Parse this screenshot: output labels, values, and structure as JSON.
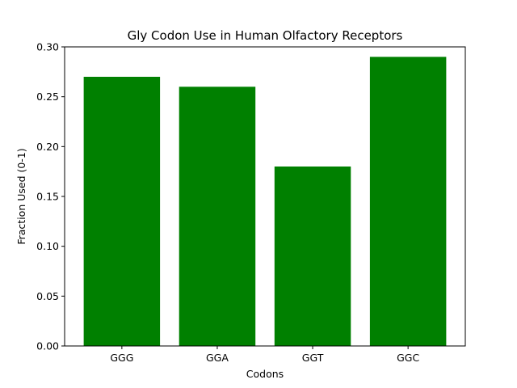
{
  "chart_data": {
    "type": "bar",
    "title": "Gly Codon Use in Human Olfactory Receptors",
    "xlabel": "Codons",
    "ylabel": "Fraction Used (0-1)",
    "categories": [
      "GGG",
      "GGA",
      "GGT",
      "GGC"
    ],
    "values": [
      0.27,
      0.26,
      0.18,
      0.29
    ],
    "ylim": [
      0,
      0.3
    ],
    "yticks": [
      0.0,
      0.05,
      0.1,
      0.15,
      0.2,
      0.25,
      0.3
    ],
    "ytick_labels": [
      "0.00",
      "0.05",
      "0.10",
      "0.15",
      "0.20",
      "0.25",
      "0.30"
    ],
    "bar_color": "#008000",
    "grid": false,
    "legend": "none"
  }
}
